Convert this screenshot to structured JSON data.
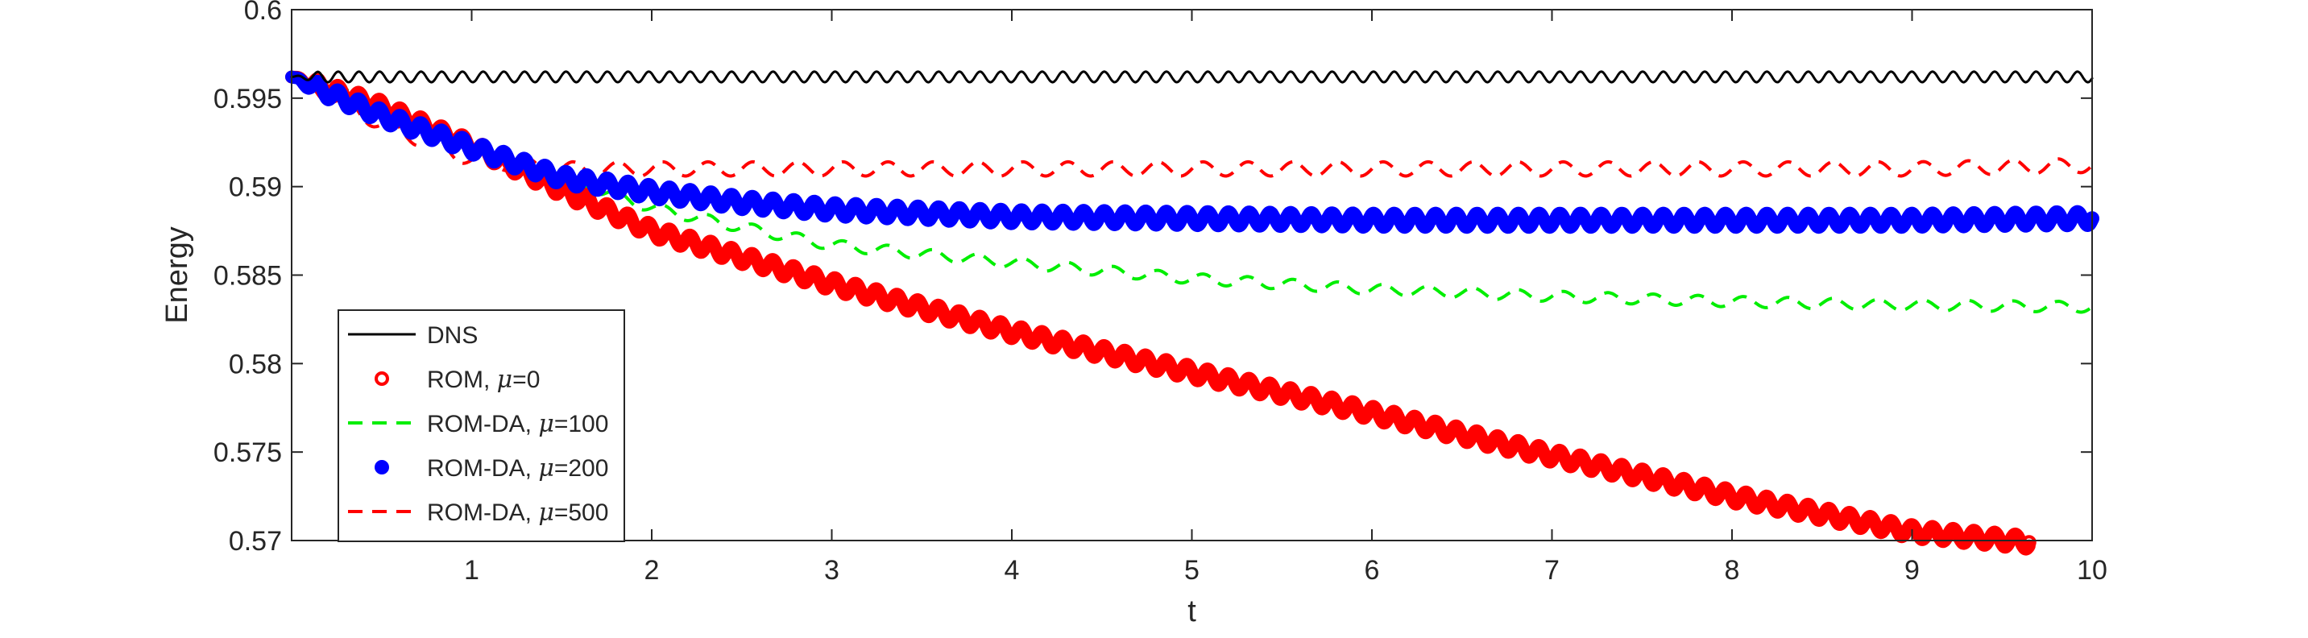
{
  "chart_data": {
    "type": "line",
    "title": "",
    "xlabel": "t",
    "ylabel": "Energy",
    "xlim": [
      0,
      10
    ],
    "ylim": [
      0.57,
      0.6
    ],
    "xticks": [
      1,
      2,
      3,
      4,
      5,
      6,
      7,
      8,
      9,
      10
    ],
    "xtick_labels": [
      "1",
      "2",
      "3",
      "4",
      "5",
      "6",
      "7",
      "8",
      "9",
      "10"
    ],
    "yticks": [
      0.57,
      0.575,
      0.58,
      0.585,
      0.59,
      0.595,
      0.6
    ],
    "ytick_labels": [
      "0.57",
      "0.575",
      "0.58",
      "0.585",
      "0.59",
      "0.595",
      "0.6"
    ],
    "grid": false,
    "legend_position": "lower-left",
    "series": [
      {
        "name": "DNS",
        "legend_prefix": "DNS",
        "legend_mu": "",
        "color": "#000000",
        "style": "solid",
        "x": [
          0,
          10
        ],
        "y": [
          0.5962,
          0.5962
        ],
        "oscillation_amplitude": 0.0003,
        "oscillation_period": 0.115
      },
      {
        "name": "ROM, μ=0",
        "legend_prefix": "ROM, ",
        "legend_mu": "=0",
        "color": "#ff0000",
        "style": "thick-markers",
        "x": [
          0,
          0.5,
          1,
          1.5,
          2,
          3,
          4,
          5,
          6,
          7,
          8,
          9,
          9.65
        ],
        "y": [
          0.5962,
          0.5945,
          0.5923,
          0.5898,
          0.5875,
          0.5845,
          0.5818,
          0.5795,
          0.5772,
          0.5748,
          0.5725,
          0.5705,
          0.5699
        ],
        "oscillation_amplitude": 0.0004,
        "oscillation_period": 0.115
      },
      {
        "name": "ROM-DA, μ=100",
        "legend_prefix": "ROM-DA, ",
        "legend_mu": "=100",
        "color": "#00ee00",
        "style": "dashed",
        "x": [
          0,
          0.5,
          1,
          1.5,
          2,
          2.5,
          3,
          4,
          5,
          6,
          7,
          8,
          9,
          10
        ],
        "y": [
          0.5962,
          0.5945,
          0.5923,
          0.5905,
          0.5888,
          0.5877,
          0.5867,
          0.5857,
          0.5848,
          0.5842,
          0.5838,
          0.5835,
          0.5833,
          0.5832
        ],
        "oscillation_amplitude": 0.0003,
        "oscillation_period": 0.25
      },
      {
        "name": "ROM-DA, μ=200",
        "legend_prefix": "ROM-DA, ",
        "legend_mu": "=200",
        "color": "#0000ff",
        "style": "thick-markers",
        "x": [
          0,
          0.5,
          1,
          1.5,
          2,
          2.5,
          3,
          4,
          5,
          6,
          7,
          8,
          9,
          10
        ],
        "y": [
          0.5962,
          0.594,
          0.5922,
          0.5905,
          0.5897,
          0.5891,
          0.5887,
          0.5883,
          0.5882,
          0.5881,
          0.5881,
          0.5881,
          0.5881,
          0.5882
        ],
        "oscillation_amplitude": 0.0004,
        "oscillation_period": 0.115
      },
      {
        "name": "ROM-DA, μ=500",
        "legend_prefix": "ROM-DA, ",
        "legend_mu": "=500",
        "color": "#ff0000",
        "style": "dashed",
        "x": [
          0,
          0.5,
          1,
          1.5,
          2,
          3,
          4,
          5,
          6,
          7,
          8,
          9,
          10
        ],
        "y": [
          0.5962,
          0.5935,
          0.5915,
          0.591,
          0.591,
          0.591,
          0.591,
          0.591,
          0.591,
          0.591,
          0.591,
          0.591,
          0.5912
        ],
        "oscillation_amplitude": 0.0004,
        "oscillation_period": 0.25
      }
    ]
  }
}
